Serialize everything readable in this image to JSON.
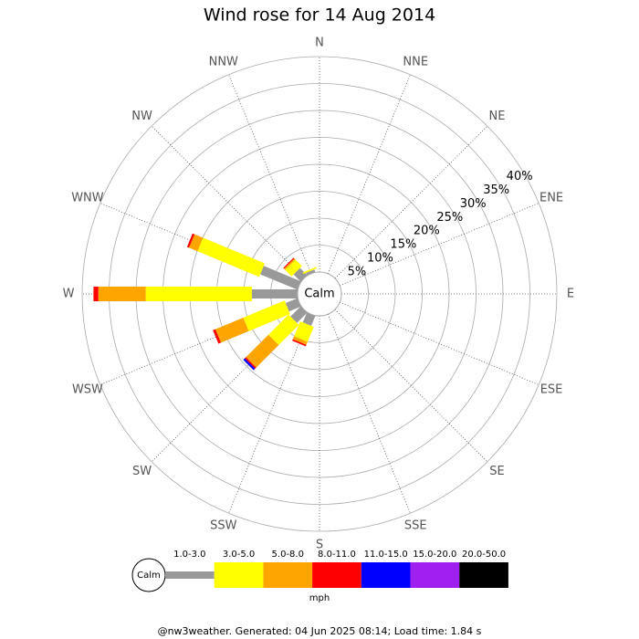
{
  "chart_data": {
    "type": "windrose",
    "title": "Wind rose for 14 Aug 2014",
    "directions": [
      "N",
      "NNE",
      "NE",
      "ENE",
      "E",
      "ESE",
      "SE",
      "SSE",
      "S",
      "SSW",
      "SW",
      "WSW",
      "W",
      "WNW",
      "NW",
      "NNW"
    ],
    "rlim": [
      0,
      40
    ],
    "rticks": [
      {
        "value": 5,
        "label": "5%"
      },
      {
        "value": 10,
        "label": "10%"
      },
      {
        "value": 15,
        "label": "15%"
      },
      {
        "value": 20,
        "label": "20%"
      },
      {
        "value": 25,
        "label": "25%"
      },
      {
        "value": 30,
        "label": "30%"
      },
      {
        "value": 35,
        "label": "35%"
      },
      {
        "value": 40,
        "label": "40%"
      }
    ],
    "calm_label": "Calm",
    "unit": "mph",
    "series": [
      {
        "name": "1.0-3.0",
        "color": "#999999",
        "values": [
          0,
          0,
          0,
          0,
          0,
          0,
          0,
          0,
          0,
          2,
          2.7,
          2.4,
          8.5,
          7.5,
          1.9,
          0.5
        ]
      },
      {
        "name": "3.0-5.0",
        "color": "#ffff00",
        "values": [
          0,
          0,
          0,
          0,
          0,
          0,
          0,
          0,
          0,
          3,
          5.3,
          8.3,
          19.7,
          12.4,
          1.7,
          0.3
        ]
      },
      {
        "name": "5.0-8.0",
        "color": "#ffa500",
        "values": [
          0,
          0,
          0,
          0,
          0,
          0,
          0,
          0,
          0,
          0.6,
          5.9,
          5.6,
          8.8,
          1.7,
          0.3,
          0
        ]
      },
      {
        "name": "8.0-11.0",
        "color": "#ff0000",
        "values": [
          0,
          0,
          0,
          0,
          0,
          0,
          0,
          0,
          0,
          0.3,
          0.3,
          0.5,
          0.9,
          0.4,
          0.2,
          0
        ]
      },
      {
        "name": "11.0-15.0",
        "color": "#0000ff",
        "values": [
          0,
          0,
          0,
          0,
          0,
          0,
          0,
          0,
          0,
          0,
          0.4,
          0,
          0,
          0,
          0,
          0
        ]
      },
      {
        "name": "15.0-20.0",
        "color": "#a020f0",
        "values": [
          0,
          0,
          0,
          0,
          0,
          0,
          0,
          0,
          0,
          0,
          0,
          0,
          0,
          0,
          0,
          0
        ]
      },
      {
        "name": "20.0-50.0",
        "color": "#000000",
        "values": [
          0,
          0,
          0,
          0,
          0,
          0,
          0,
          0,
          0,
          0,
          0,
          0,
          0,
          0,
          0,
          0
        ]
      }
    ],
    "footer": "@nw3weather. Generated: 04 Jun 2025 08:14; Load time: 1.84 s"
  }
}
